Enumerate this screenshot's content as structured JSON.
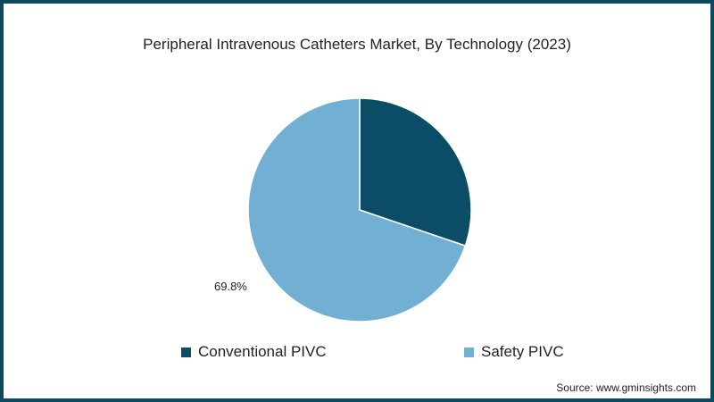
{
  "chart_data": {
    "type": "pie",
    "title": "Peripheral Intravenous Catheters Market, By Technology (2023)",
    "categories": [
      "Conventional PIVC",
      "Safety PIVC"
    ],
    "values": [
      30.2,
      69.8
    ],
    "colors": [
      "#0b4d66",
      "#72b0d3"
    ],
    "data_labels": [
      "",
      "69.8%"
    ],
    "legend_position": "bottom",
    "start_angle": "12 o'clock, clockwise"
  },
  "title": "Peripheral Intravenous Catheters Market, By Technology (2023)",
  "slice_label": "69.8%",
  "legend": [
    {
      "label": "Conventional PIVC",
      "color": "#0b4d66"
    },
    {
      "label": "Safety PIVC",
      "color": "#72b0d3"
    }
  ],
  "source": "Source: www.gminsights.com"
}
